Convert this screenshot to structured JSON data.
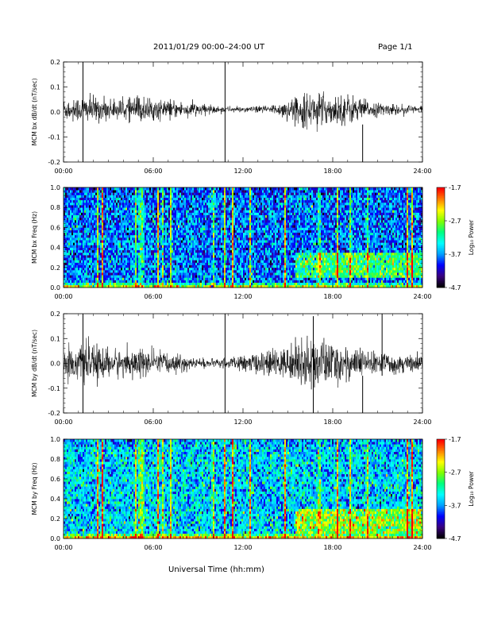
{
  "header": {
    "title": "2011/01/29  00:00–24:00 UT",
    "page": "Page 1/1"
  },
  "x_axis_title": "Universal Time (hh:mm)",
  "colorbar": {
    "label": "Log₁₀ Power",
    "ticks": [
      "-1.7",
      "-2.7",
      "-3.7",
      "-4.7"
    ],
    "range": [
      -4.7,
      -1.7
    ],
    "colors": [
      "#000000",
      "#3a0080",
      "#0000ff",
      "#00a0ff",
      "#00ffff",
      "#00ff80",
      "#80ff00",
      "#ffff00",
      "#ff8000",
      "#ff0000"
    ]
  },
  "chart_data": [
    {
      "type": "line",
      "panel": "bx-waveform",
      "ylabel": "MCM bx dB/dt (nT/sec)",
      "xlim": [
        0,
        24
      ],
      "ylim": [
        -0.2,
        0.2
      ],
      "yticks": [
        "0.2",
        "0.1",
        "0.0",
        "-0.1",
        "-0.2"
      ],
      "xticks": [
        "00:00",
        "06:00",
        "12:00",
        "18:00",
        "24:00"
      ],
      "envelope": {
        "hours": [
          0,
          1,
          2,
          3,
          4,
          5,
          6,
          7,
          8,
          9,
          10,
          11,
          12,
          13,
          14,
          15,
          16,
          17,
          18,
          19,
          20,
          21,
          22,
          23,
          24
        ],
        "amplitude": [
          0.045,
          0.05,
          0.05,
          0.04,
          0.035,
          0.055,
          0.04,
          0.035,
          0.03,
          0.025,
          0.015,
          0.012,
          0.01,
          0.012,
          0.02,
          0.035,
          0.06,
          0.065,
          0.055,
          0.06,
          0.04,
          0.025,
          0.02,
          0.018,
          0.015
        ],
        "baseline": 0.01
      },
      "spikes": [
        {
          "hour": 1.3,
          "min": -0.2,
          "max": 0.2
        },
        {
          "hour": 10.8,
          "min": -0.2,
          "max": 0.2
        },
        {
          "hour": 20.0,
          "min": -0.2,
          "max": -0.05
        }
      ]
    },
    {
      "type": "heatmap",
      "panel": "bx-spectrogram",
      "ylabel": "MCM bx Freq (Hz)",
      "xlim": [
        0,
        24
      ],
      "ylim": [
        0,
        1.0
      ],
      "yticks": [
        "1.0",
        "0.8",
        "0.6",
        "0.4",
        "0.2",
        "0.0"
      ],
      "xticks": [
        "00:00",
        "06:00",
        "12:00",
        "18:00",
        "24:00"
      ],
      "color_range": [
        -4.7,
        -1.7
      ],
      "background_level": -3.8,
      "broadband_bursts_hours": [
        2.3,
        2.6,
        4.8,
        5.1,
        5.3,
        6.3,
        6.6,
        7.2,
        10.0,
        10.8,
        11.3,
        12.5,
        14.8,
        17.1,
        18.3,
        19.2,
        20.3,
        23.0,
        23.3
      ],
      "enhanced_region": {
        "hours": [
          15.5,
          24
        ],
        "freq": [
          0.1,
          0.35
        ]
      }
    },
    {
      "type": "line",
      "panel": "by-waveform",
      "ylabel": "MCM by dB/dt (nT/sec)",
      "xlim": [
        0,
        24
      ],
      "ylim": [
        -0.2,
        0.2
      ],
      "yticks": [
        "0.2",
        "0.1",
        "0.0",
        "-0.1",
        "-0.2"
      ],
      "xticks": [
        "00:00",
        "06:00",
        "12:00",
        "18:00",
        "24:00"
      ],
      "envelope": {
        "hours": [
          0,
          1,
          2,
          3,
          4,
          5,
          6,
          7,
          8,
          9,
          10,
          11,
          12,
          13,
          14,
          15,
          16,
          17,
          18,
          19,
          20,
          21,
          22,
          23,
          24
        ],
        "amplitude": [
          0.06,
          0.065,
          0.07,
          0.06,
          0.05,
          0.06,
          0.05,
          0.04,
          0.03,
          0.02,
          0.015,
          0.02,
          0.03,
          0.04,
          0.05,
          0.06,
          0.09,
          0.1,
          0.08,
          0.07,
          0.05,
          0.04,
          0.04,
          0.035,
          0.03
        ],
        "baseline": 0.0
      },
      "spikes": [
        {
          "hour": 1.3,
          "min": -0.2,
          "max": 0.2
        },
        {
          "hour": 10.8,
          "min": -0.2,
          "max": 0.2
        },
        {
          "hour": 16.7,
          "min": -0.2,
          "max": 0.19
        },
        {
          "hour": 20.0,
          "min": -0.2,
          "max": -0.05
        },
        {
          "hour": 21.3,
          "min": -0.05,
          "max": 0.2
        }
      ]
    },
    {
      "type": "heatmap",
      "panel": "by-spectrogram",
      "ylabel": "MCM by Freq (Hz)",
      "xlim": [
        0,
        24
      ],
      "ylim": [
        0,
        1.0
      ],
      "yticks": [
        "1.0",
        "0.8",
        "0.6",
        "0.4",
        "0.2",
        "0.0"
      ],
      "xticks": [
        "00:00",
        "06:00",
        "12:00",
        "18:00",
        "24:00"
      ],
      "color_range": [
        -4.7,
        -1.7
      ],
      "background_level": -3.5,
      "broadband_bursts_hours": [
        2.3,
        2.6,
        4.8,
        5.1,
        5.3,
        6.3,
        6.6,
        7.2,
        10.0,
        10.8,
        11.3,
        12.5,
        14.8,
        17.1,
        18.3,
        19.2,
        20.3,
        23.0,
        23.3
      ],
      "enhanced_region": {
        "hours": [
          15.5,
          24
        ],
        "freq": [
          0.05,
          0.3
        ]
      }
    }
  ]
}
